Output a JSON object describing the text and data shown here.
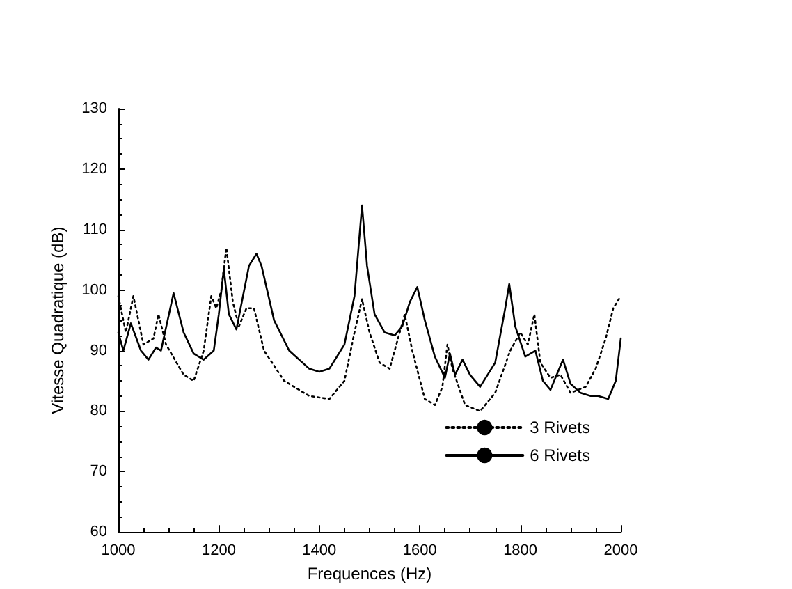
{
  "chart_data": {
    "type": "line",
    "xlabel": "Frequences (Hz)",
    "ylabel": "Vitesse Quadratique (dB)",
    "xlim": [
      1000,
      2000
    ],
    "xticks": [
      1000,
      1200,
      1400,
      1600,
      1800,
      2000
    ],
    "ylim": [
      60,
      130
    ],
    "yticks": [
      60,
      70,
      80,
      90,
      100,
      110,
      120,
      130
    ],
    "grid": false,
    "legend": "bottom right",
    "marker": "none",
    "series": [
      {
        "name": "3 Rivets",
        "color": "#000000",
        "line_style": "dotted",
        "x": [
          1000,
          1015,
          1030,
          1050,
          1070,
          1080,
          1095,
          1130,
          1150,
          1170,
          1185,
          1195,
          1205,
          1215,
          1228,
          1240,
          1255,
          1270,
          1290,
          1330,
          1380,
          1420,
          1450,
          1470,
          1485,
          1500,
          1520,
          1540,
          1560,
          1570,
          1585,
          1610,
          1630,
          1645,
          1655,
          1665,
          1690,
          1720,
          1750,
          1780,
          1800,
          1815,
          1828,
          1840,
          1860,
          1880,
          1900,
          1930,
          1950,
          1970,
          1985,
          2000
        ],
        "values": [
          99,
          93,
          99,
          91,
          92,
          96,
          91,
          86,
          85,
          90,
          99,
          97,
          100,
          107,
          98,
          94,
          97,
          97,
          90,
          85,
          82.5,
          82,
          85,
          93,
          98.5,
          93,
          88,
          87,
          93,
          96,
          90,
          82,
          81,
          84,
          91,
          87,
          81,
          80,
          83,
          90,
          93,
          91,
          96,
          88,
          85.5,
          86,
          83,
          84,
          87,
          92,
          97,
          99
        ]
      },
      {
        "name": "6 Rivets",
        "color": "#000000",
        "line_style": "solid",
        "x": [
          1000,
          1010,
          1025,
          1045,
          1060,
          1075,
          1085,
          1110,
          1130,
          1150,
          1170,
          1190,
          1200,
          1210,
          1220,
          1235,
          1260,
          1275,
          1285,
          1310,
          1340,
          1380,
          1400,
          1420,
          1450,
          1470,
          1485,
          1495,
          1510,
          1530,
          1550,
          1565,
          1580,
          1595,
          1610,
          1630,
          1650,
          1660,
          1670,
          1685,
          1700,
          1720,
          1750,
          1770,
          1778,
          1790,
          1810,
          1830,
          1845,
          1860,
          1885,
          1900,
          1920,
          1940,
          1955,
          1975,
          1990,
          2000
        ],
        "values": [
          93,
          90,
          94.5,
          90,
          88.5,
          90.5,
          90,
          99.5,
          93,
          89.5,
          88.5,
          90,
          96,
          103.5,
          96,
          93.5,
          104,
          106,
          104,
          95,
          90,
          87,
          86.5,
          87,
          91,
          99,
          114,
          104,
          96,
          93,
          92.5,
          94,
          98,
          100.5,
          95,
          89,
          85.5,
          89.5,
          86,
          88.5,
          86,
          84,
          88,
          97,
          101,
          94,
          89,
          90,
          85,
          83.5,
          88.5,
          84.5,
          83,
          82.5,
          82.5,
          82,
          85,
          92
        ]
      }
    ]
  }
}
